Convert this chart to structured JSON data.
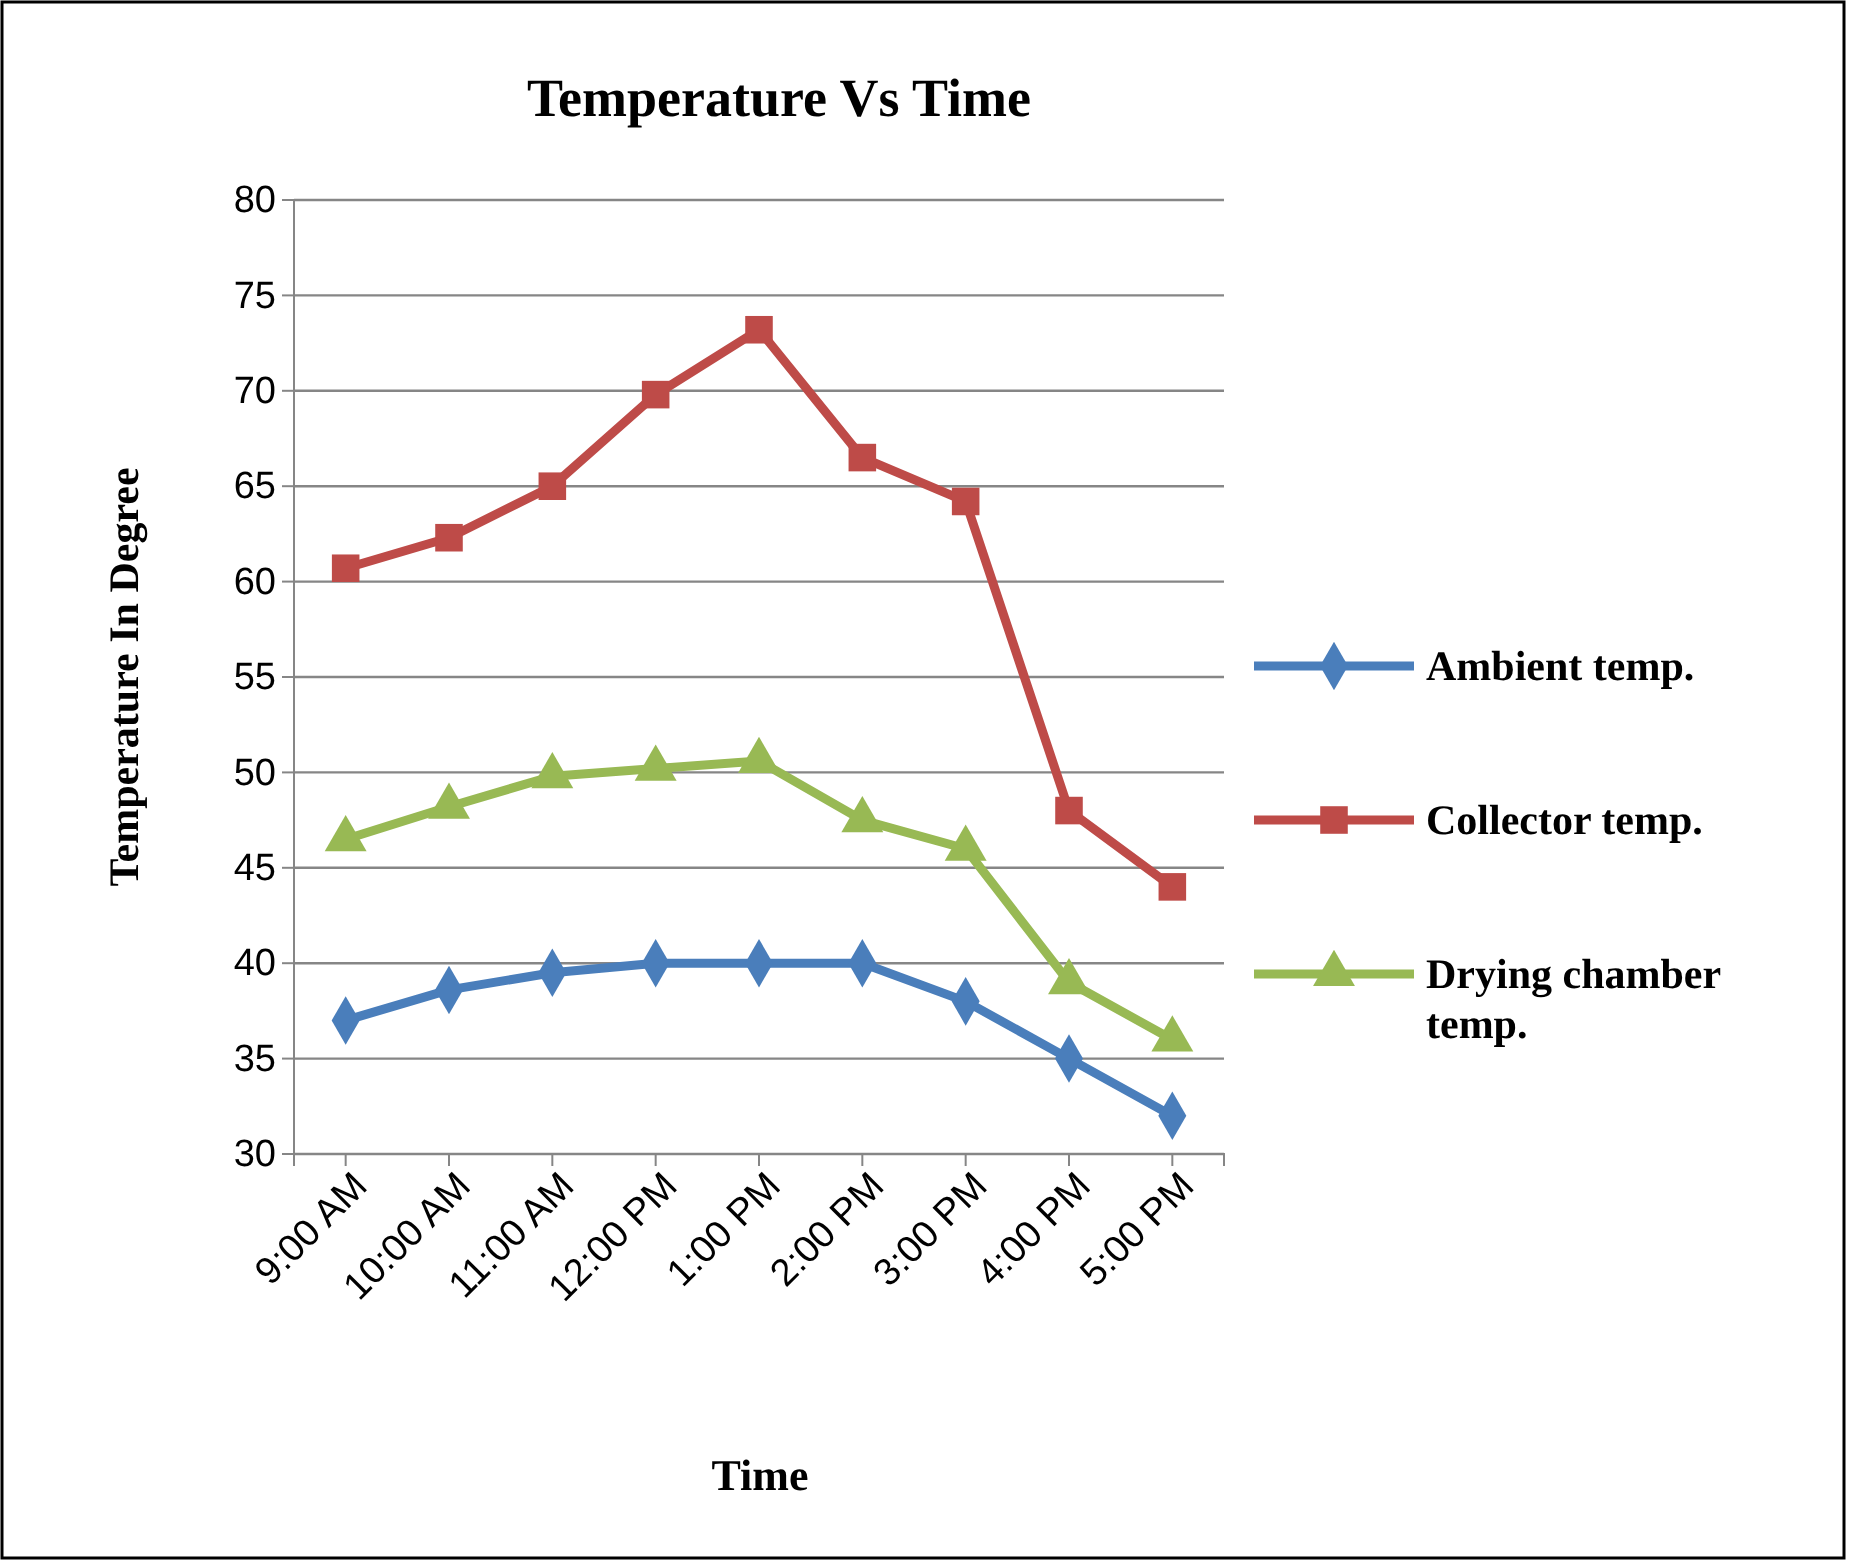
{
  "chart_data": {
    "type": "line",
    "title": "Temperature Vs Time",
    "xlabel": "Time",
    "ylabel": "Temperature In Degree",
    "categories": [
      "9:00 AM",
      "10:00 AM",
      "11:00 AM",
      "12:00 PM",
      "1:00 PM",
      "2:00 PM",
      "3:00 PM",
      "4:00 PM",
      "5:00 PM"
    ],
    "series": [
      {
        "name": "Ambient temp.",
        "color": "#4a7ebb",
        "marker": "diamond",
        "values": [
          37,
          38.6,
          39.5,
          40,
          40,
          40,
          38,
          35,
          32
        ]
      },
      {
        "name": "Collector temp.",
        "color": "#be4b48",
        "marker": "square",
        "values": [
          60.7,
          62.3,
          65,
          69.8,
          73.2,
          66.5,
          64.2,
          48,
          44
        ]
      },
      {
        "name": "Drying chamber temp.",
        "color": "#98b954",
        "marker": "triangle",
        "values": [
          46.5,
          48.2,
          49.8,
          50.2,
          50.6,
          47.5,
          46,
          39,
          36
        ]
      }
    ],
    "ylim": [
      30,
      80
    ],
    "yticks": [
      30,
      35,
      40,
      45,
      50,
      55,
      60,
      65,
      70,
      75,
      80
    ],
    "grid": "y",
    "legend": "right",
    "line_style": "solid"
  }
}
